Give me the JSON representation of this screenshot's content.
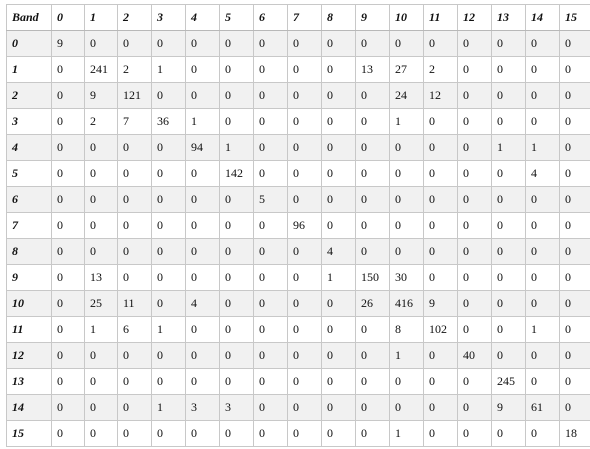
{
  "table": {
    "corner_label": "Band",
    "column_headers": [
      "0",
      "1",
      "2",
      "3",
      "4",
      "5",
      "6",
      "7",
      "8",
      "9",
      "10",
      "11",
      "12",
      "13",
      "14",
      "15"
    ],
    "rows": [
      {
        "label": "0",
        "cells": [
          "9",
          "0",
          "0",
          "0",
          "0",
          "0",
          "0",
          "0",
          "0",
          "0",
          "0",
          "0",
          "0",
          "0",
          "0",
          "0"
        ]
      },
      {
        "label": "1",
        "cells": [
          "0",
          "241",
          "2",
          "1",
          "0",
          "0",
          "0",
          "0",
          "0",
          "13",
          "27",
          "2",
          "0",
          "0",
          "0",
          "0"
        ]
      },
      {
        "label": "2",
        "cells": [
          "0",
          "9",
          "121",
          "0",
          "0",
          "0",
          "0",
          "0",
          "0",
          "0",
          "24",
          "12",
          "0",
          "0",
          "0",
          "0"
        ]
      },
      {
        "label": "3",
        "cells": [
          "0",
          "2",
          "7",
          "36",
          "1",
          "0",
          "0",
          "0",
          "0",
          "0",
          "1",
          "0",
          "0",
          "0",
          "0",
          "0"
        ]
      },
      {
        "label": "4",
        "cells": [
          "0",
          "0",
          "0",
          "0",
          "94",
          "1",
          "0",
          "0",
          "0",
          "0",
          "0",
          "0",
          "0",
          "1",
          "1",
          "0"
        ]
      },
      {
        "label": "5",
        "cells": [
          "0",
          "0",
          "0",
          "0",
          "0",
          "142",
          "0",
          "0",
          "0",
          "0",
          "0",
          "0",
          "0",
          "0",
          "4",
          "0"
        ]
      },
      {
        "label": "6",
        "cells": [
          "0",
          "0",
          "0",
          "0",
          "0",
          "0",
          "5",
          "0",
          "0",
          "0",
          "0",
          "0",
          "0",
          "0",
          "0",
          "0"
        ]
      },
      {
        "label": "7",
        "cells": [
          "0",
          "0",
          "0",
          "0",
          "0",
          "0",
          "0",
          "96",
          "0",
          "0",
          "0",
          "0",
          "0",
          "0",
          "0",
          "0"
        ]
      },
      {
        "label": "8",
        "cells": [
          "0",
          "0",
          "0",
          "0",
          "0",
          "0",
          "0",
          "0",
          "4",
          "0",
          "0",
          "0",
          "0",
          "0",
          "0",
          "0"
        ]
      },
      {
        "label": "9",
        "cells": [
          "0",
          "13",
          "0",
          "0",
          "0",
          "0",
          "0",
          "0",
          "1",
          "150",
          "30",
          "0",
          "0",
          "0",
          "0",
          "0"
        ]
      },
      {
        "label": "10",
        "cells": [
          "0",
          "25",
          "11",
          "0",
          "4",
          "0",
          "0",
          "0",
          "0",
          "26",
          "416",
          "9",
          "0",
          "0",
          "0",
          "0"
        ]
      },
      {
        "label": "11",
        "cells": [
          "0",
          "1",
          "6",
          "1",
          "0",
          "0",
          "0",
          "0",
          "0",
          "0",
          "8",
          "102",
          "0",
          "0",
          "1",
          "0"
        ]
      },
      {
        "label": "12",
        "cells": [
          "0",
          "0",
          "0",
          "0",
          "0",
          "0",
          "0",
          "0",
          "0",
          "0",
          "1",
          "0",
          "40",
          "0",
          "0",
          "0"
        ]
      },
      {
        "label": "13",
        "cells": [
          "0",
          "0",
          "0",
          "0",
          "0",
          "0",
          "0",
          "0",
          "0",
          "0",
          "0",
          "0",
          "0",
          "245",
          "0",
          "0"
        ]
      },
      {
        "label": "14",
        "cells": [
          "0",
          "0",
          "0",
          "1",
          "3",
          "3",
          "0",
          "0",
          "0",
          "0",
          "0",
          "0",
          "0",
          "9",
          "61",
          "0"
        ]
      },
      {
        "label": "15",
        "cells": [
          "0",
          "0",
          "0",
          "0",
          "0",
          "0",
          "0",
          "0",
          "0",
          "0",
          "1",
          "0",
          "0",
          "0",
          "0",
          "18"
        ]
      }
    ]
  }
}
